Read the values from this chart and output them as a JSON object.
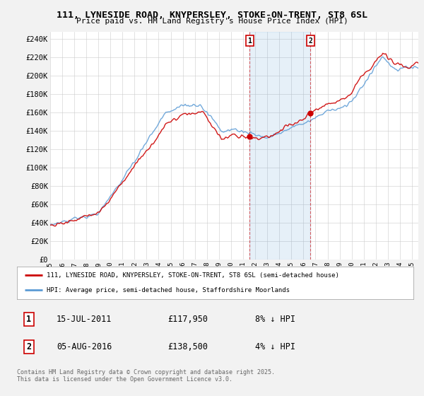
{
  "title": "111, LYNESIDE ROAD, KNYPERSLEY, STOKE-ON-TRENT, ST8 6SL",
  "subtitle": "Price paid vs. HM Land Registry's House Price Index (HPI)",
  "ylabel_ticks": [
    0,
    20000,
    40000,
    60000,
    80000,
    100000,
    120000,
    140000,
    160000,
    180000,
    200000,
    220000,
    240000
  ],
  "ylabel_labels": [
    "£0",
    "£20K",
    "£40K",
    "£60K",
    "£80K",
    "£100K",
    "£120K",
    "£140K",
    "£160K",
    "£180K",
    "£200K",
    "£220K",
    "£240K"
  ],
  "xmin": 1995.0,
  "xmax": 2025.5,
  "ymin": 0,
  "ymax": 248000,
  "hpi_color": "#5b9bd5",
  "price_color": "#cc0000",
  "transaction1_date": 2011.54,
  "transaction1_price": 117950,
  "transaction1_label": "1",
  "transaction1_display": "15-JUL-2011",
  "transaction1_amount": "£117,950",
  "transaction1_hpi": "8% ↓ HPI",
  "transaction2_date": 2016.59,
  "transaction2_price": 138500,
  "transaction2_label": "2",
  "transaction2_display": "05-AUG-2016",
  "transaction2_amount": "£138,500",
  "transaction2_hpi": "4% ↓ HPI",
  "legend_property": "111, LYNESIDE ROAD, KNYPERSLEY, STOKE-ON-TRENT, ST8 6SL (semi-detached house)",
  "legend_hpi": "HPI: Average price, semi-detached house, Staffordshire Moorlands",
  "footer": "Contains HM Land Registry data © Crown copyright and database right 2025.\nThis data is licensed under the Open Government Licence v3.0.",
  "background_color": "#f2f2f2",
  "plot_bg_color": "#ffffff",
  "shade_color": "#ddeeff"
}
